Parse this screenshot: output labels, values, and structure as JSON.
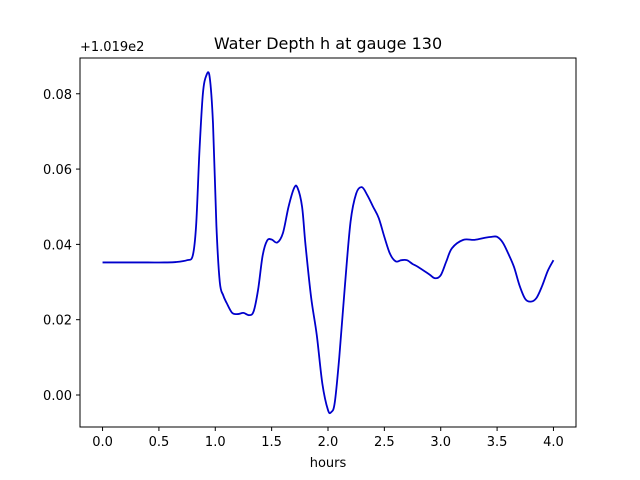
{
  "chart_data": {
    "type": "line",
    "title": "Water Depth h at gauge 130",
    "xlabel": "hours",
    "ylabel": "",
    "offset_label": "+1.019e2",
    "xlim": [
      -0.2,
      4.2
    ],
    "ylim": [
      -0.0085,
      0.0895
    ],
    "xticks": [
      0.0,
      0.5,
      1.0,
      1.5,
      2.0,
      2.5,
      3.0,
      3.5,
      4.0
    ],
    "xtick_labels": [
      "0.0",
      "0.5",
      "1.0",
      "1.5",
      "2.0",
      "2.5",
      "3.0",
      "3.5",
      "4.0"
    ],
    "yticks": [
      0.0,
      0.02,
      0.04,
      0.06,
      0.08
    ],
    "ytick_labels": [
      "0.00",
      "0.02",
      "0.04",
      "0.06",
      "0.08"
    ],
    "grid": false,
    "series": [
      {
        "color": "#0000cc",
        "x": [
          0.0,
          0.2,
          0.4,
          0.55,
          0.65,
          0.75,
          0.8,
          0.83,
          0.86,
          0.89,
          0.92,
          0.95,
          0.98,
          1.01,
          1.04,
          1.07,
          1.1,
          1.15,
          1.2,
          1.25,
          1.3,
          1.34,
          1.38,
          1.42,
          1.46,
          1.5,
          1.55,
          1.6,
          1.65,
          1.7,
          1.73,
          1.77,
          1.8,
          1.85,
          1.9,
          1.95,
          2.0,
          2.03,
          2.06,
          2.1,
          2.15,
          2.2,
          2.25,
          2.3,
          2.35,
          2.4,
          2.45,
          2.5,
          2.55,
          2.6,
          2.65,
          2.7,
          2.75,
          2.8,
          2.9,
          2.95,
          3.0,
          3.05,
          3.1,
          3.2,
          3.3,
          3.4,
          3.45,
          3.5,
          3.55,
          3.6,
          3.65,
          3.7,
          3.75,
          3.8,
          3.85,
          3.9,
          3.95,
          4.0
        ],
        "y": [
          0.0352,
          0.0352,
          0.0352,
          0.0352,
          0.0353,
          0.0358,
          0.037,
          0.045,
          0.065,
          0.08,
          0.0848,
          0.0845,
          0.072,
          0.045,
          0.03,
          0.0265,
          0.0245,
          0.0218,
          0.0215,
          0.0218,
          0.0212,
          0.0222,
          0.028,
          0.037,
          0.041,
          0.0413,
          0.0405,
          0.043,
          0.05,
          0.055,
          0.055,
          0.05,
          0.04,
          0.026,
          0.016,
          0.003,
          -0.004,
          -0.0045,
          -0.002,
          0.01,
          0.029,
          0.046,
          0.0535,
          0.0552,
          0.053,
          0.05,
          0.047,
          0.042,
          0.0375,
          0.0355,
          0.0358,
          0.0358,
          0.0348,
          0.034,
          0.032,
          0.031,
          0.0318,
          0.0355,
          0.039,
          0.0412,
          0.0412,
          0.0418,
          0.042,
          0.042,
          0.0405,
          0.0375,
          0.034,
          0.029,
          0.0255,
          0.0248,
          0.0258,
          0.029,
          0.033,
          0.0358
        ]
      }
    ]
  }
}
